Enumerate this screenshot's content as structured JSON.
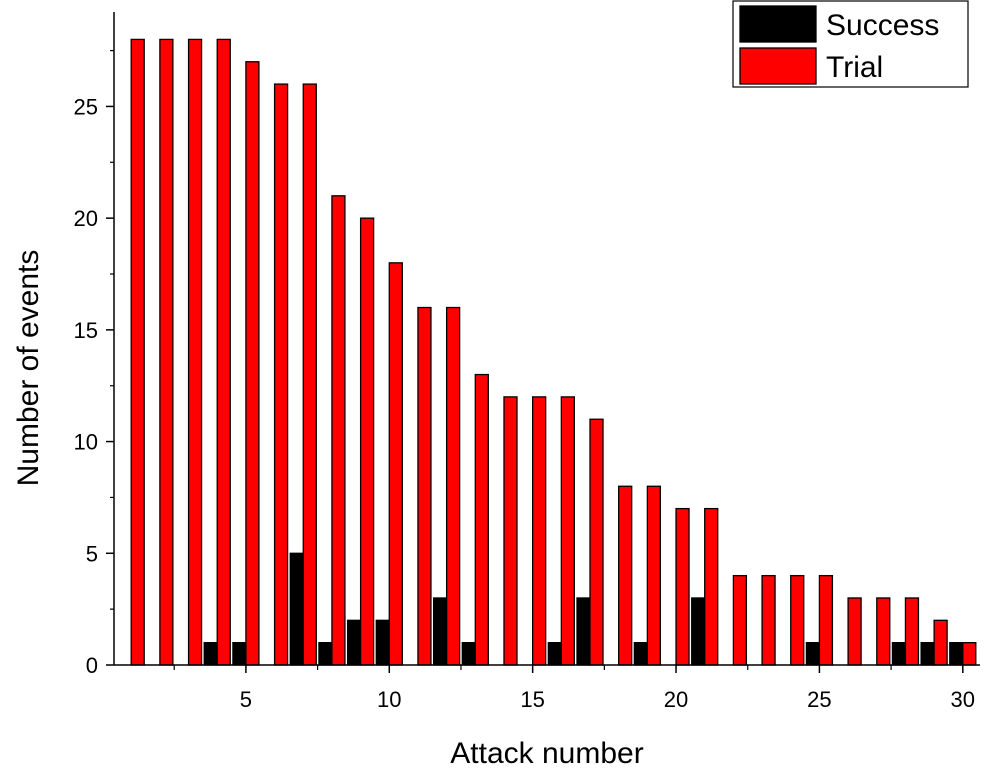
{
  "chart_data": {
    "type": "bar",
    "title": "",
    "xlabel": "Attack number",
    "ylabel": "Number of events",
    "x": [
      1,
      2,
      3,
      4,
      5,
      6,
      7,
      8,
      9,
      10,
      11,
      12,
      13,
      14,
      15,
      16,
      17,
      18,
      19,
      20,
      21,
      22,
      23,
      24,
      25,
      26,
      27,
      28,
      29,
      30
    ],
    "series": [
      {
        "name": "Success",
        "color": "#000000",
        "values": [
          0,
          0,
          0,
          1,
          1,
          0,
          5,
          1,
          2,
          2,
          0,
          3,
          1,
          0,
          0,
          1,
          3,
          0,
          1,
          0,
          3,
          0,
          0,
          0,
          1,
          0,
          0,
          1,
          1,
          1
        ]
      },
      {
        "name": "Trial",
        "color": "#ff0000",
        "values": [
          28,
          28,
          28,
          28,
          27,
          26,
          26,
          21,
          20,
          18,
          16,
          16,
          13,
          12,
          12,
          12,
          11,
          8,
          8,
          7,
          7,
          4,
          4,
          4,
          4,
          3,
          3,
          3,
          2,
          1
        ]
      }
    ],
    "xlim": [
      0.4,
      30.6
    ],
    "ylim": [
      0,
      28.6
    ],
    "xticks": [
      5,
      10,
      15,
      20,
      25,
      30
    ],
    "yticks": [
      0,
      5,
      10,
      15,
      20,
      25
    ],
    "grid": false,
    "legend_position": "top-right"
  }
}
